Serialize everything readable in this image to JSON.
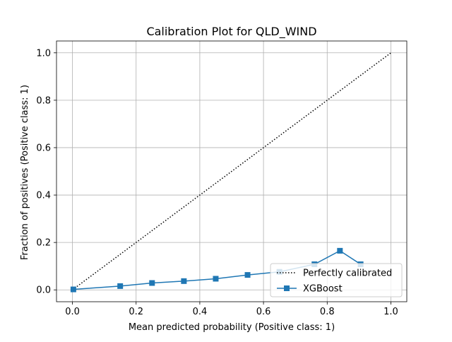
{
  "chart_data": {
    "type": "line",
    "title": "Calibration Plot for QLD_WIND",
    "xlabel": "Mean predicted probability (Positive class: 1)",
    "ylabel": "Fraction of positives (Positive class: 1)",
    "xlim": [
      -0.05,
      1.05
    ],
    "ylim": [
      -0.05,
      1.05
    ],
    "xticks": [
      0.0,
      0.2,
      0.4,
      0.6,
      0.8,
      1.0
    ],
    "xtick_labels": [
      "0.0",
      "0.2",
      "0.4",
      "0.6",
      "0.8",
      "1.0"
    ],
    "yticks": [
      0.0,
      0.2,
      0.4,
      0.6,
      0.8,
      1.0
    ],
    "ytick_labels": [
      "0.0",
      "0.2",
      "0.4",
      "0.6",
      "0.8",
      "1.0"
    ],
    "grid": true,
    "legend_position": "lower-right",
    "series": [
      {
        "name": "Perfectly calibrated",
        "style": "dotted",
        "color": "#000000",
        "x": [
          0.0,
          1.0
        ],
        "y": [
          0.0,
          1.0
        ]
      },
      {
        "name": "XGBoost",
        "style": "solid",
        "marker": "square",
        "color": "#1f77b4",
        "x": [
          0.003,
          0.15,
          0.25,
          0.35,
          0.45,
          0.55,
          0.65,
          0.76,
          0.84,
          0.905
        ],
        "y": [
          0.002,
          0.016,
          0.029,
          0.037,
          0.047,
          0.063,
          0.076,
          0.108,
          0.165,
          0.108
        ]
      }
    ]
  }
}
